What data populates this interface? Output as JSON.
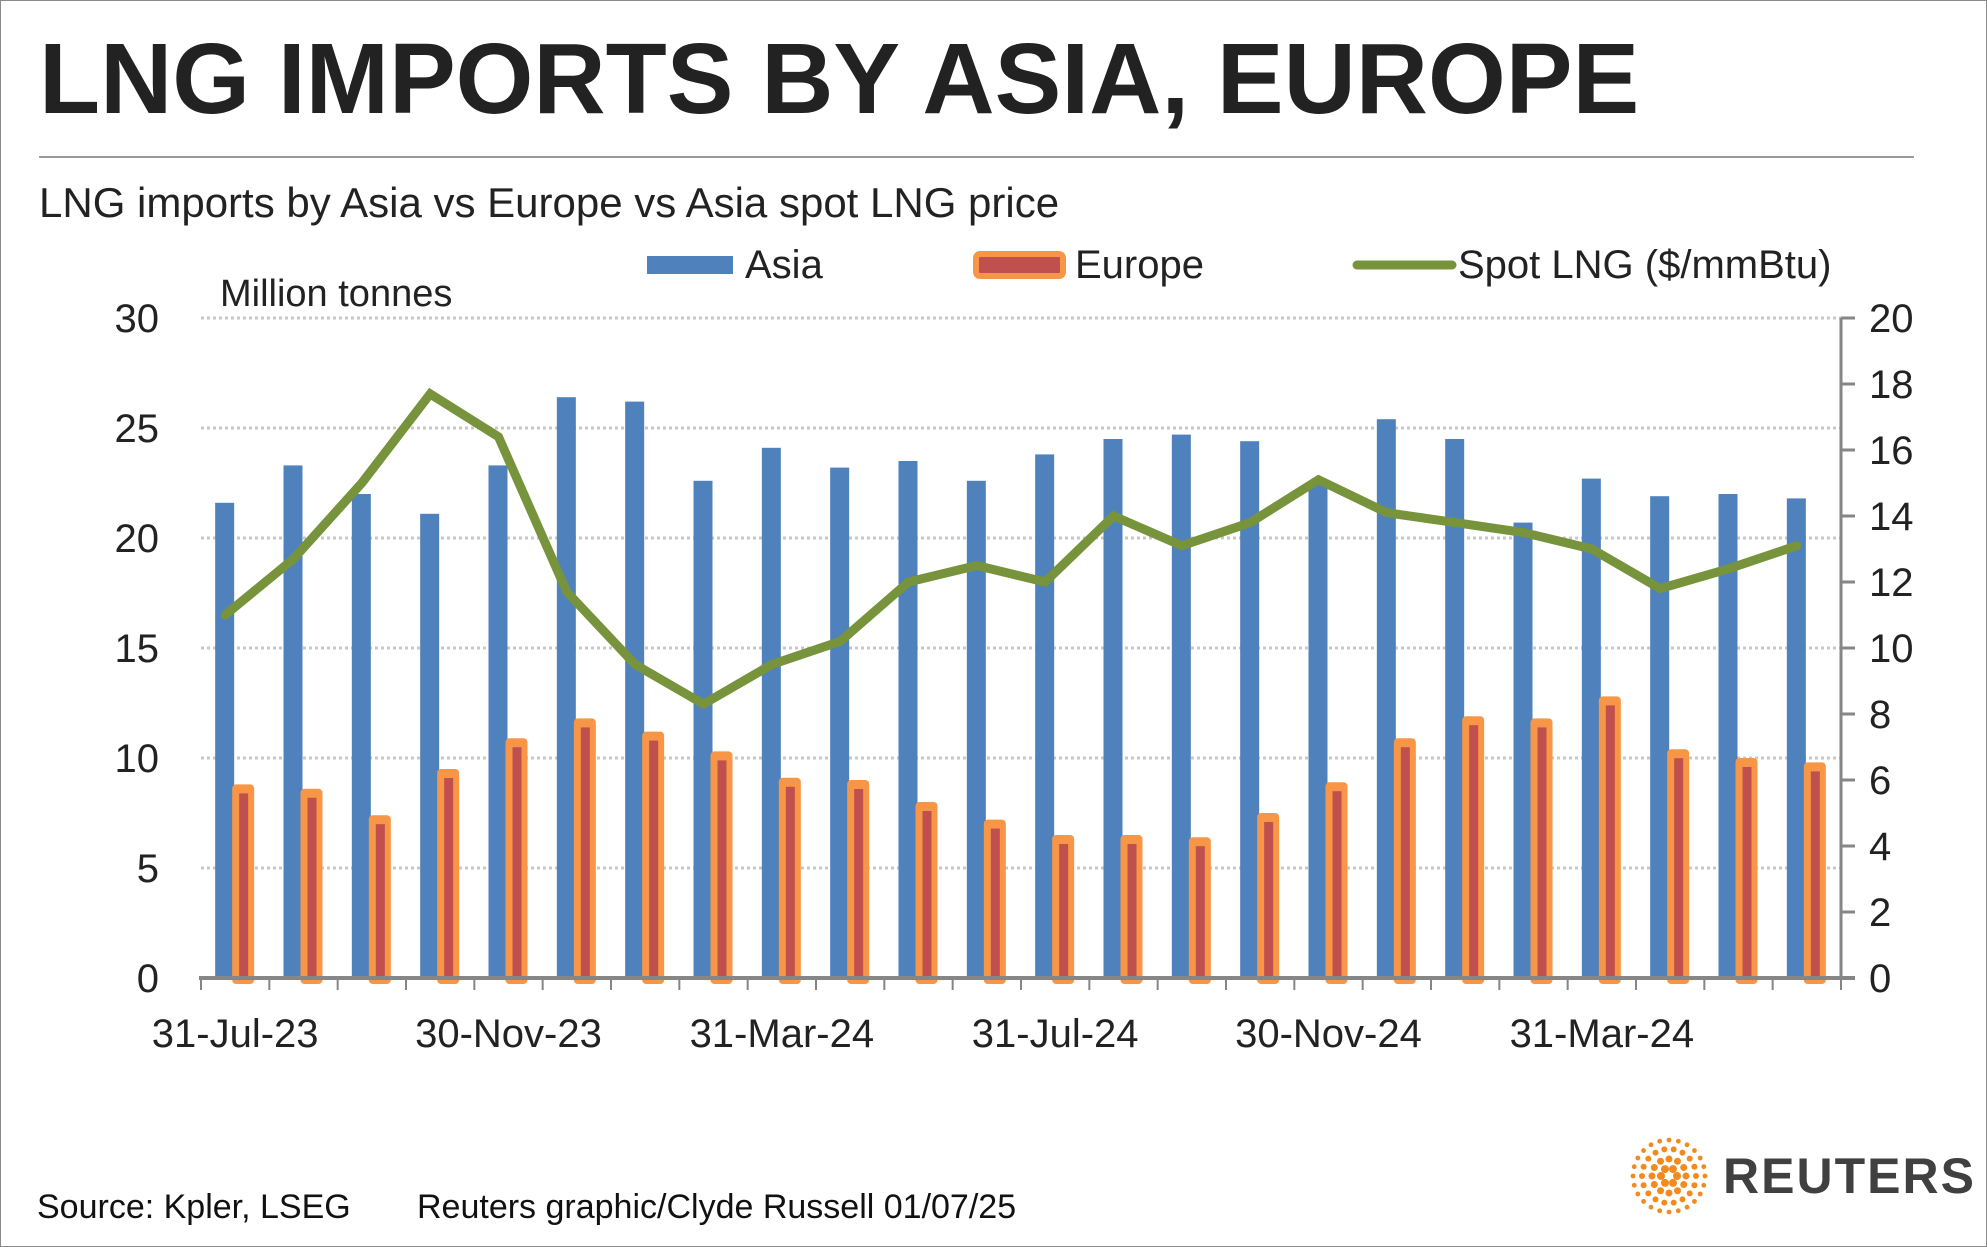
{
  "header": {
    "title": "LNG IMPORTS BY ASIA, EUROPE",
    "subtitle": "LNG imports by Asia vs Europe vs Asia spot LNG price"
  },
  "footer": {
    "source": "Source: Kpler, LSEG",
    "credit": "Reuters graphic/Clyde Russell 01/07/25",
    "logo_text": "REUTERS"
  },
  "colors": {
    "asia": "#4f81bd",
    "europe_border": "#f79646",
    "europe_fill": "#c0504d",
    "spot": "#77933c"
  },
  "chart_data": {
    "type": "bar+line",
    "ylabel": "Million tonnes",
    "ylim": [
      0,
      30
    ],
    "y_ticks": [
      "0",
      "5",
      "10",
      "15",
      "20",
      "25",
      "30"
    ],
    "y2lim": [
      0,
      20
    ],
    "y2_ticks": [
      "0",
      "2",
      "4",
      "6",
      "8",
      "10",
      "12",
      "14",
      "16",
      "18",
      "20"
    ],
    "grid": true,
    "legend_position": "top",
    "x_tick_labels": [
      "31-Jul-23",
      "30-Nov-23",
      "31-Mar-24",
      "31-Jul-24",
      "30-Nov-24",
      "31-Mar-24"
    ],
    "x_tick_every": 4,
    "series": [
      {
        "name": "Asia",
        "type": "bar",
        "axis": "left",
        "values": [
          21.6,
          23.3,
          22.0,
          21.1,
          23.3,
          26.4,
          26.2,
          22.6,
          24.1,
          23.2,
          23.5,
          22.6,
          23.8,
          24.5,
          24.7,
          24.4,
          22.6,
          25.4,
          24.5,
          20.7,
          22.7,
          21.9,
          22.0,
          21.8
        ]
      },
      {
        "name": "Europe",
        "type": "bar",
        "axis": "left",
        "values": [
          8.8,
          8.6,
          7.4,
          9.5,
          10.9,
          11.8,
          11.2,
          10.3,
          9.1,
          9.0,
          8.0,
          7.2,
          6.5,
          6.5,
          6.4,
          7.5,
          8.9,
          10.9,
          11.9,
          11.8,
          12.8,
          10.4,
          10.0,
          9.8
        ]
      },
      {
        "name": "Spot LNG ($/mmBtu)",
        "type": "line",
        "axis": "right",
        "values": [
          11.0,
          12.7,
          15.0,
          17.7,
          16.4,
          11.7,
          9.5,
          8.3,
          9.5,
          10.2,
          12.0,
          12.5,
          12.0,
          14.0,
          13.1,
          13.8,
          15.1,
          14.1,
          13.8,
          13.5,
          13.0,
          11.8,
          12.4,
          13.1
        ]
      }
    ]
  }
}
